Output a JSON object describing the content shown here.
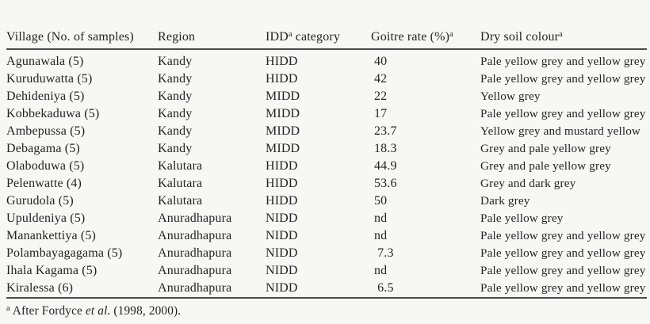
{
  "colors": {
    "background": "#f7f7f5",
    "text": "#242424",
    "rule": "#4b4b49"
  },
  "table": {
    "columns": [
      {
        "label": "Village (No. of samples)"
      },
      {
        "label": "Region"
      },
      {
        "label": "IDD",
        "sup": "a",
        "label2": " category"
      },
      {
        "label": "Goitre rate (%)",
        "sup": "a"
      },
      {
        "label": "Dry soil colour",
        "sup": "a"
      }
    ],
    "rows": [
      {
        "village": "Agunawala (5)",
        "region": "Kandy",
        "idd": "HIDD",
        "rate": "40",
        "soil": "Pale yellow grey and yellow grey"
      },
      {
        "village": "Kuruduwatta (5)",
        "region": "Kandy",
        "idd": "HIDD",
        "rate": "42",
        "soil": "Pale yellow grey and yellow grey"
      },
      {
        "village": "Dehideniya (5)",
        "region": "Kandy",
        "idd": "MIDD",
        "rate": "22",
        "soil": "Yellow grey"
      },
      {
        "village": "Kobbekaduwa (5)",
        "region": "Kandy",
        "idd": "MIDD",
        "rate": "17",
        "soil": "Pale yellow grey and yellow grey"
      },
      {
        "village": "Ambepussa (5)",
        "region": "Kandy",
        "idd": "MIDD",
        "rate": "23.7",
        "soil": "Yellow grey and mustard yellow"
      },
      {
        "village": "Debagama (5)",
        "region": "Kandy",
        "idd": "MIDD",
        "rate": "18.3",
        "soil": "Grey and pale yellow grey"
      },
      {
        "village": "Olaboduwa (5)",
        "region": "Kalutara",
        "idd": "HIDD",
        "rate": "44.9",
        "soil": "Grey and pale yellow grey"
      },
      {
        "village": "Pelenwatte (4)",
        "region": "Kalutara",
        "idd": "HIDD",
        "rate": "53.6",
        "soil": "Grey and dark grey"
      },
      {
        "village": "Gurudola (5)",
        "region": "Kalutara",
        "idd": "HIDD",
        "rate": "50",
        "soil": "Dark grey"
      },
      {
        "village": "Upuldeniya (5)",
        "region": "Anuradhapura",
        "idd": "NIDD",
        "rate": "nd",
        "soil": "Pale yellow grey"
      },
      {
        "village": "Manankettiya (5)",
        "region": "Anuradhapura",
        "idd": "NIDD",
        "rate": "nd",
        "soil": "Pale yellow grey and yellow grey"
      },
      {
        "village": "Polambayagagama (5)",
        "region": "Anuradhapura",
        "idd": "NIDD",
        "rate": " 7.3",
        "soil": "Pale yellow grey and yellow grey"
      },
      {
        "village": "Ihala Kagama (5)",
        "region": "Anuradhapura",
        "idd": "NIDD",
        "rate": "nd",
        "soil": "Pale yellow grey and yellow grey"
      },
      {
        "village": "Kiralessa (6)",
        "region": "Anuradhapura",
        "idd": "NIDD",
        "rate": " 6.5",
        "soil": "Pale yellow grey and yellow grey"
      }
    ],
    "footnote": {
      "sup": "a",
      "pre": " After Fordyce ",
      "italic": "et al.",
      "post": " (1998, 2000)."
    }
  }
}
